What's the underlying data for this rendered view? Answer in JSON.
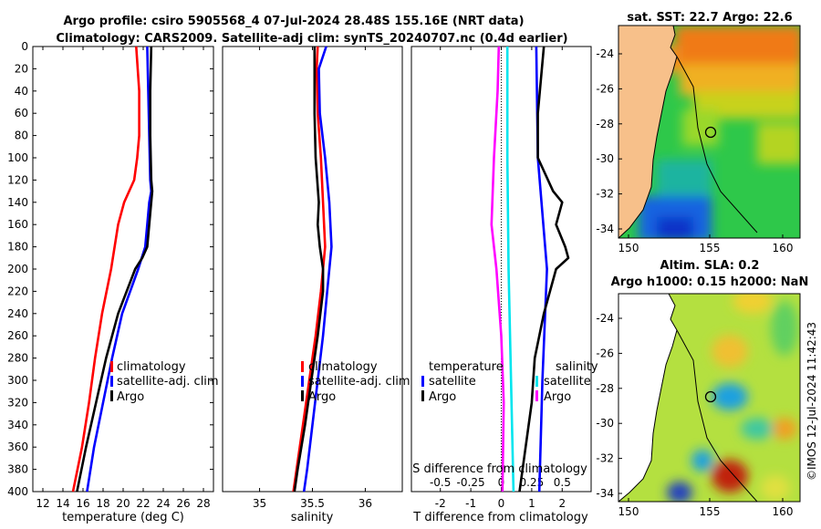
{
  "header": {
    "line1": "Argo profile: csiro 5905568_4 07-Jul-2024 28.48S 155.16E (NRT data)",
    "line2": "Climatology: CARS2009. Satellite-adj clim: synTS_20240707.nc (0.4d earlier)"
  },
  "colors": {
    "climatology": "#ff0000",
    "satellite": "#0000ff",
    "argo": "#000000",
    "t_diff_sat": "#00e5ee",
    "s_diff_sat": "#ff00ff",
    "land": "#f7c08a"
  },
  "depth_ticks": [
    "0",
    "20",
    "40",
    "60",
    "80",
    "100",
    "120",
    "140",
    "160",
    "180",
    "200",
    "220",
    "240",
    "260",
    "280",
    "300",
    "320",
    "340",
    "360",
    "380",
    "400"
  ],
  "chart_data": [
    {
      "type": "line",
      "name": "temperature",
      "xlabel": "temperature (deg C)",
      "ylabel": "",
      "xlim": [
        11,
        29
      ],
      "ylim": [
        400,
        0
      ],
      "xticks": [
        "12",
        "14",
        "16",
        "18",
        "20",
        "22",
        "24",
        "26",
        "28"
      ],
      "legend": [
        "climatology",
        "satellite-adj. clim",
        "Argo"
      ],
      "series": [
        {
          "name": "climatology",
          "depth": [
            0,
            40,
            80,
            100,
            120,
            140,
            160,
            200,
            240,
            280,
            320,
            360,
            400
          ],
          "values": [
            21.3,
            21.6,
            21.6,
            21.4,
            21.1,
            20.1,
            19.5,
            18.8,
            17.9,
            17.2,
            16.6,
            15.9,
            15.0
          ]
        },
        {
          "name": "satellite-adj. clim",
          "depth": [
            0,
            40,
            80,
            120,
            130,
            140,
            160,
            180,
            200,
            240,
            280,
            320,
            360,
            400
          ],
          "values": [
            22.4,
            22.5,
            22.6,
            22.7,
            22.8,
            22.6,
            22.4,
            22.2,
            21.5,
            19.9,
            18.9,
            18.0,
            17.1,
            16.4
          ]
        },
        {
          "name": "Argo",
          "depth": [
            0,
            40,
            80,
            120,
            130,
            140,
            160,
            180,
            190,
            200,
            240,
            280,
            320,
            360,
            400
          ],
          "values": [
            22.8,
            22.7,
            22.7,
            22.8,
            22.9,
            22.8,
            22.6,
            22.4,
            21.9,
            21.2,
            19.5,
            18.3,
            17.3,
            16.3,
            15.4
          ]
        }
      ]
    },
    {
      "type": "line",
      "name": "salinity",
      "xlabel": "salinity",
      "xlim": [
        34.65,
        36.35
      ],
      "ylim": [
        400,
        0
      ],
      "xticks": [
        "35",
        "35.5",
        "36"
      ],
      "legend": [
        "climatology",
        "satellite-adj. clim",
        "Argo"
      ],
      "series": [
        {
          "name": "climatology",
          "depth": [
            0,
            20,
            60,
            100,
            140,
            180,
            220,
            260,
            300,
            340,
            380,
            400
          ],
          "values": [
            35.55,
            35.54,
            35.55,
            35.58,
            35.6,
            35.62,
            35.58,
            35.53,
            35.47,
            35.41,
            35.35,
            35.32
          ]
        },
        {
          "name": "satellite-adj. clim",
          "depth": [
            0,
            20,
            60,
            100,
            140,
            180,
            220,
            260,
            300,
            340,
            380,
            400
          ],
          "values": [
            35.63,
            35.56,
            35.57,
            35.62,
            35.66,
            35.68,
            35.64,
            35.6,
            35.55,
            35.5,
            35.45,
            35.42
          ]
        },
        {
          "name": "Argo",
          "depth": [
            0,
            20,
            60,
            100,
            140,
            160,
            180,
            200,
            220,
            260,
            300,
            340,
            380,
            400
          ],
          "values": [
            35.52,
            35.52,
            35.52,
            35.53,
            35.56,
            35.55,
            35.57,
            35.6,
            35.6,
            35.55,
            35.49,
            35.43,
            35.36,
            35.33
          ]
        }
      ]
    },
    {
      "type": "line",
      "name": "differences",
      "xlabel": "T difference from climatology",
      "x2label": "S difference from climatology",
      "xlim": [
        -2.95,
        2.95
      ],
      "x2lim": [
        -0.737,
        0.737
      ],
      "ylim": [
        400,
        0
      ],
      "xticks": [
        "-2",
        "-1",
        "0",
        "1",
        "2"
      ],
      "x2ticks": [
        "-0.5",
        "-0.25",
        "0",
        "0.25",
        "0.5"
      ],
      "legend_temperature": {
        "title": "temperature",
        "entries": [
          "satellite",
          "Argo"
        ]
      },
      "legend_salinity": {
        "title": "salinity",
        "entries": [
          "satellite",
          "Argo"
        ]
      },
      "series": [
        {
          "name": "T satellite",
          "depth": [
            0,
            100,
            200,
            300,
            400
          ],
          "values": [
            1.15,
            1.2,
            1.5,
            1.35,
            1.25
          ]
        },
        {
          "name": "T Argo",
          "depth": [
            0,
            60,
            100,
            130,
            140,
            160,
            180,
            190,
            200,
            240,
            280,
            320,
            400
          ],
          "values": [
            1.4,
            1.2,
            1.2,
            1.7,
            2.0,
            1.8,
            2.1,
            2.2,
            1.8,
            1.4,
            1.1,
            1.0,
            0.6
          ]
        },
        {
          "name": "S satellite",
          "depth": [
            0,
            100,
            200,
            300,
            400
          ],
          "values": [
            0.05,
            0.05,
            0.06,
            0.08,
            0.1
          ]
        },
        {
          "name": "S Argo",
          "depth": [
            0,
            40,
            100,
            160,
            200,
            260,
            320,
            400
          ],
          "values": [
            -0.02,
            -0.03,
            -0.06,
            -0.08,
            -0.04,
            0.0,
            0.02,
            0.01
          ]
        }
      ]
    }
  ],
  "maps": [
    {
      "title": "sat. SST: 22.7  Argo: 22.6",
      "xticks": [
        "150",
        "155",
        "160"
      ],
      "yticks": [
        "-24",
        "-26",
        "-28",
        "-30",
        "-32",
        "-34"
      ]
    },
    {
      "title_line1": "Altim. SLA: 0.2",
      "title_line2": "Argo h1000: 0.15 h2000: NaN",
      "xticks": [
        "150",
        "155",
        "160"
      ],
      "yticks": [
        "-24",
        "-26",
        "-28",
        "-30",
        "-32",
        "-34"
      ]
    }
  ],
  "credit": "©IMOS 12-Jul-2024 11:42:43"
}
